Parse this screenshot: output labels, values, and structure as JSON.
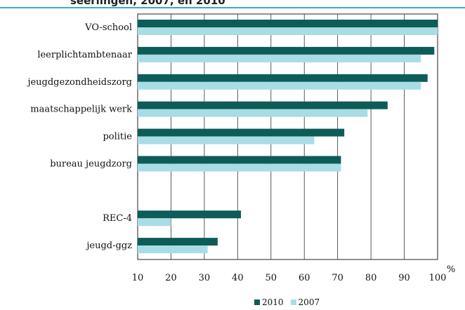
{
  "header": {
    "title_fragment": "seerlingen, 2007, en 2010",
    "rule_color": "#3aa6d6"
  },
  "chart_data": {
    "type": "bar",
    "orientation": "horizontal",
    "categories": [
      "VO-school",
      "leerplichtambtenaar",
      "jeugdgezondheidszorg",
      "maatschappelijk werk",
      "politie",
      "bureau jeugdzorg",
      "",
      "REC-4",
      "jeugd-ggz"
    ],
    "series": [
      {
        "name": "2010",
        "color": "#0d5c57",
        "values": [
          100,
          99,
          97,
          85,
          72,
          71,
          null,
          41,
          34
        ]
      },
      {
        "name": "2007",
        "color": "#a8dde6",
        "values": [
          100,
          95,
          95,
          79,
          63,
          71,
          null,
          20,
          31
        ]
      }
    ],
    "xlim": [
      10,
      100
    ],
    "xticks": [
      10,
      20,
      30,
      40,
      50,
      60,
      70,
      80,
      90,
      100
    ],
    "xunit": "%",
    "grid": true,
    "legend_position": "bottom"
  }
}
